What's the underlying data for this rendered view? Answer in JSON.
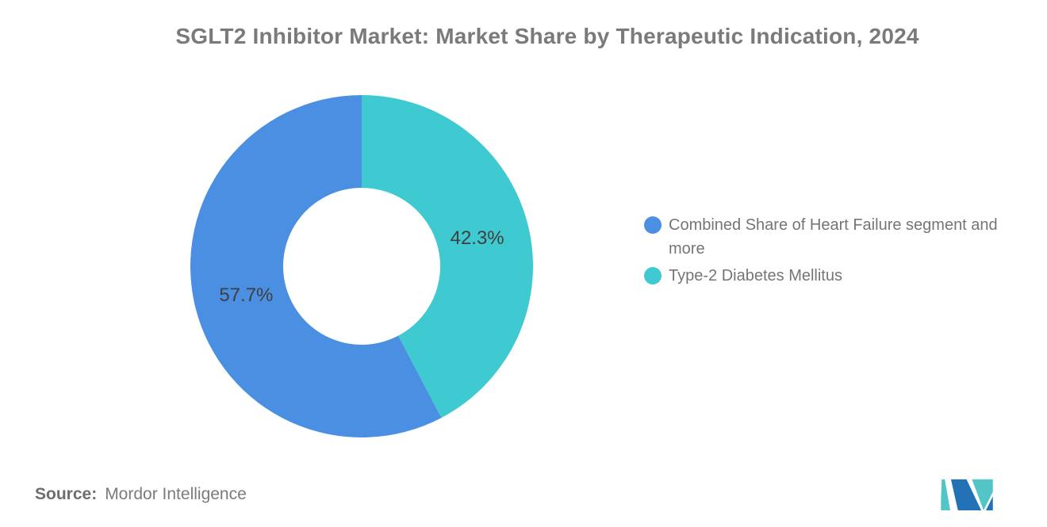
{
  "header": {
    "title": "SGLT2 Inhibitor Market: Market Share by Therapeutic Indication, 2024"
  },
  "chart_data": {
    "type": "pie",
    "subtype": "donut",
    "title": "SGLT2 Inhibitor Market: Market Share by Therapeutic Indication, 2024",
    "categories": [
      "Combined Share of Heart Failure segment and more",
      "Type-2 Diabetes Mellitus"
    ],
    "values": [
      57.7,
      42.3
    ],
    "series": [
      {
        "name": "Combined Share of Heart Failure segment and more",
        "value": 57.7,
        "label": "57.7%",
        "color": "#4A8FE2"
      },
      {
        "name": "Type-2 Diabetes Mellitus",
        "value": 42.3,
        "label": "42.3%",
        "color": "#3FC9D1"
      }
    ],
    "total": 100,
    "start_angle_deg": 0,
    "direction": "clockwise",
    "draw_order": [
      1,
      0
    ],
    "hole": true,
    "legend_position": "right",
    "label_color": "#3F3F3F"
  },
  "legend": {
    "items": [
      {
        "label": "Combined Share of Heart Failure segment and more",
        "color": "#4A8FE2"
      },
      {
        "label": "Type-2 Diabetes Mellitus",
        "color": "#3FC9D1"
      }
    ]
  },
  "footer": {
    "source_label": "Source:",
    "source_value": "Mordor Intelligence"
  },
  "logo": {
    "name": "Mordor Intelligence",
    "blue": "#2272B5",
    "teal": "#52C5C7"
  }
}
